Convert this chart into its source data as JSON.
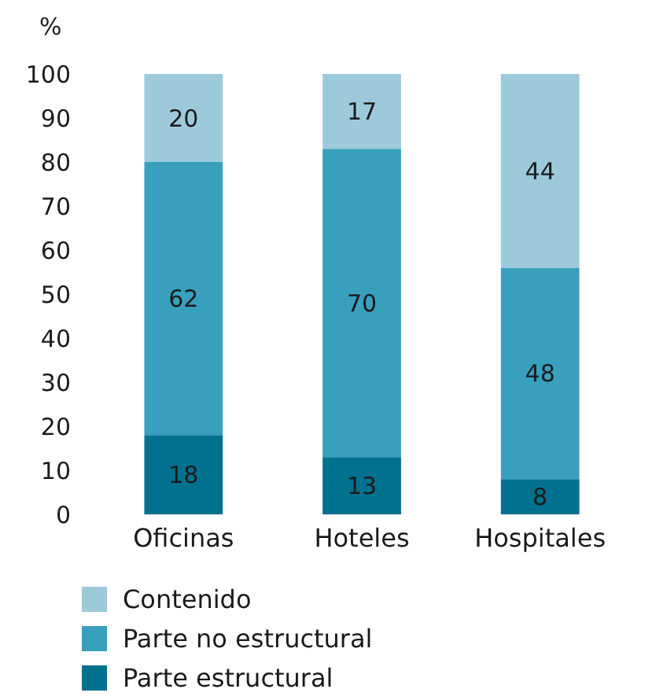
{
  "chart_data": {
    "type": "bar",
    "stacked": true,
    "ylabel": "%",
    "categories": [
      "Oficinas",
      "Hoteles",
      "Hospitales"
    ],
    "series": [
      {
        "name": "Parte estructural",
        "color": "#00718f",
        "values": [
          18,
          13,
          8
        ]
      },
      {
        "name": "Parte no estructural",
        "color": "#38a0bd",
        "values": [
          62,
          70,
          48
        ]
      },
      {
        "name": "Contenido",
        "color": "#9dcadb",
        "values": [
          20,
          17,
          44
        ]
      }
    ],
    "ylim": [
      0,
      100
    ],
    "yticks": [
      0,
      10,
      20,
      30,
      40,
      50,
      60,
      70,
      80,
      90,
      100
    ],
    "data_labels": true,
    "legend": "bottom",
    "grid": false
  }
}
